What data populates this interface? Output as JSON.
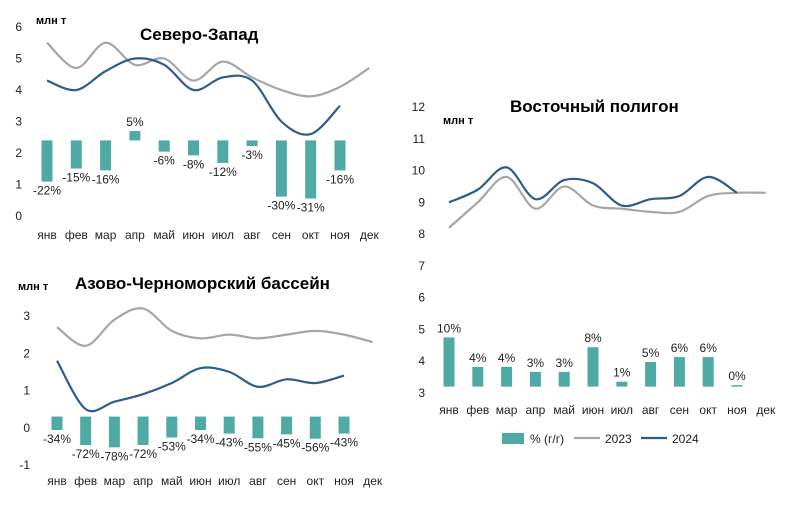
{
  "colors": {
    "bar": "#4FAAA6",
    "line2023": "#A6A6A6",
    "line2024": "#2E5C8E",
    "axis": "#D9D9D9"
  },
  "legend": {
    "bar_label": "% (г/г)",
    "line2023_label": "2023",
    "line2024_label": "2024"
  },
  "chart_data": [
    {
      "type": "line",
      "title": "Северо-Запад",
      "unit": "млн т",
      "categories": [
        "янв",
        "фев",
        "мар",
        "апр",
        "май",
        "июн",
        "июл",
        "авг",
        "сен",
        "окт",
        "ноя",
        "дек"
      ],
      "ylim": [
        0,
        6
      ],
      "yticks": [
        "0",
        "1",
        "2",
        "3",
        "4",
        "5",
        "6"
      ],
      "series": [
        {
          "name": "2023",
          "values": [
            5.5,
            4.7,
            5.5,
            4.8,
            5.0,
            4.3,
            4.9,
            4.4,
            4.0,
            3.8,
            4.1,
            4.7
          ]
        },
        {
          "name": "2024",
          "values": [
            4.3,
            4.0,
            4.6,
            5.0,
            4.8,
            4.0,
            4.4,
            4.3,
            3.0,
            2.6,
            3.5,
            null
          ]
        }
      ],
      "bar_baseline": 2.4,
      "bar_scale": 0.0595,
      "bars": {
        "name": "% (г/г)",
        "values": [
          -22,
          -15,
          -16,
          5,
          -6,
          -8,
          -12,
          -3,
          -30,
          -31,
          -16,
          null
        ],
        "labels": [
          "-22%",
          "-15%",
          "-16%",
          "5%",
          "-6%",
          "-8%",
          "-12%",
          "-3%",
          "-30%",
          "-31%",
          "-16%",
          ""
        ]
      }
    },
    {
      "type": "line",
      "title": "Азово-Черноморский бассейн",
      "unit": "млн т",
      "categories": [
        "янв",
        "фев",
        "мар",
        "апр",
        "май",
        "июн",
        "июл",
        "авг",
        "сен",
        "окт",
        "ноя",
        "дек"
      ],
      "ylim": [
        -1,
        3
      ],
      "yticks": [
        "-1",
        "0",
        "1",
        "2",
        "3"
      ],
      "series": [
        {
          "name": "2023",
          "values": [
            2.7,
            2.2,
            2.9,
            3.2,
            2.6,
            2.4,
            2.5,
            2.4,
            2.5,
            2.6,
            2.5,
            2.3
          ]
        },
        {
          "name": "2024",
          "values": [
            1.8,
            0.5,
            0.7,
            0.9,
            1.2,
            1.6,
            1.5,
            1.1,
            1.3,
            1.2,
            1.4,
            null
          ]
        }
      ],
      "bar_baseline": 0.3,
      "bar_scale": 0.0106,
      "bars": {
        "name": "% (г/г)",
        "values": [
          -34,
          -72,
          -78,
          -72,
          -53,
          -34,
          -43,
          -55,
          -45,
          -56,
          -43,
          null
        ],
        "labels": [
          "-34%",
          "-72%",
          "-78%",
          "-72%",
          "-53%",
          "-34%",
          "-43%",
          "-55%",
          "-45%",
          "-56%",
          "-43%",
          ""
        ]
      }
    },
    {
      "type": "line",
      "title": "Восточный полигон",
      "unit": "млн т",
      "categories": [
        "янв",
        "фев",
        "мар",
        "апр",
        "май",
        "июн",
        "июл",
        "авг",
        "сен",
        "окт",
        "ноя",
        "дек"
      ],
      "ylim": [
        3,
        12
      ],
      "yticks": [
        "3",
        "4",
        "5",
        "6",
        "7",
        "8",
        "9",
        "10",
        "11",
        "12"
      ],
      "series": [
        {
          "name": "2023",
          "values": [
            8.2,
            9.0,
            9.8,
            8.8,
            9.5,
            8.9,
            8.8,
            8.7,
            8.7,
            9.2,
            9.3,
            9.3
          ]
        },
        {
          "name": "2024",
          "values": [
            9.0,
            9.4,
            10.1,
            9.1,
            9.7,
            9.6,
            8.9,
            9.1,
            9.2,
            9.8,
            9.3,
            null
          ]
        }
      ],
      "bar_baseline": 3.2,
      "bar_scale": 0.155,
      "bars": {
        "name": "% (г/г)",
        "values": [
          10,
          4,
          4,
          3,
          3,
          8,
          1,
          5,
          6,
          6,
          0,
          null
        ],
        "labels": [
          "10%",
          "4%",
          "4%",
          "3%",
          "3%",
          "8%",
          "1%",
          "5%",
          "6%",
          "6%",
          "0%",
          ""
        ]
      }
    }
  ]
}
